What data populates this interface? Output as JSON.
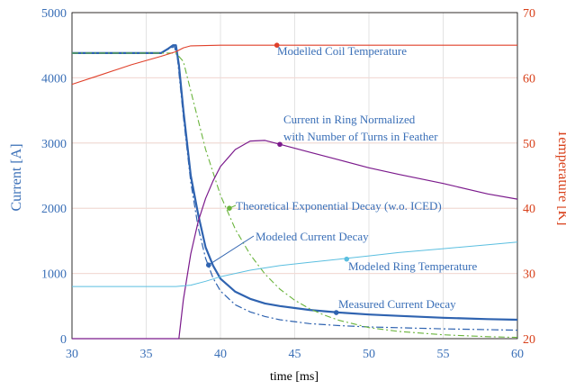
{
  "chart_data": {
    "type": "line",
    "title": "",
    "xlabel": "time [ms]",
    "ylabel_left": "Current [A]",
    "ylabel_right": "Temperature [K]",
    "xlim": [
      30,
      60
    ],
    "ylim_left": [
      0,
      5000
    ],
    "ylim_right": [
      20,
      70
    ],
    "x_ticks": [
      "30",
      "35",
      "40",
      "45",
      "50",
      "55",
      "60"
    ],
    "y_ticks_left": [
      "0",
      "1000",
      "2000",
      "3000",
      "4000",
      "5000"
    ],
    "y_ticks_right": [
      "20",
      "30",
      "40",
      "50",
      "60",
      "70"
    ],
    "grid": true,
    "colors": {
      "left_axis": "#3a6fb7",
      "right_axis": "#d8401a",
      "measured": "#2f63b0",
      "modeled_current": "#2f63b0",
      "exponential": "#6ab43c",
      "ring_current": "#7b1a8c",
      "coil_temp": "#e0402a",
      "ring_temp": "#5bbfe0"
    },
    "annotations": {
      "coil_temp": "Modelled Coil Temperature",
      "ring_current_1": "Current in Ring Normalized",
      "ring_current_2": "with Number of Turns in Feather",
      "exponential": "Theoretical Exponential Decay (w.o. ICED)",
      "modeled_current": "Modeled Current Decay",
      "ring_temp": "Modeled Ring Temperature",
      "measured": "Measured Current Decay"
    },
    "series": [
      {
        "key": "measured",
        "axis": "left",
        "values": [
          [
            30,
            4380
          ],
          [
            36,
            4380
          ],
          [
            36.5,
            4450
          ],
          [
            36.8,
            4500
          ],
          [
            37.0,
            4500
          ],
          [
            37.2,
            4200
          ],
          [
            37.5,
            3500
          ],
          [
            38,
            2500
          ],
          [
            38.5,
            1900
          ],
          [
            39,
            1400
          ],
          [
            39.5,
            1120
          ],
          [
            40,
            920
          ],
          [
            41,
            720
          ],
          [
            42,
            610
          ],
          [
            43,
            540
          ],
          [
            44,
            500
          ],
          [
            46,
            440
          ],
          [
            48,
            400
          ],
          [
            50,
            370
          ],
          [
            52,
            350
          ],
          [
            55,
            320
          ],
          [
            58,
            300
          ],
          [
            60,
            290
          ]
        ]
      },
      {
        "key": "modeled_current",
        "axis": "left",
        "values": [
          [
            30,
            4380
          ],
          [
            36,
            4380
          ],
          [
            36.5,
            4440
          ],
          [
            36.9,
            4480
          ],
          [
            37.1,
            4300
          ],
          [
            37.5,
            3400
          ],
          [
            38,
            2400
          ],
          [
            38.5,
            1700
          ],
          [
            39,
            1230
          ],
          [
            39.5,
            930
          ],
          [
            40,
            730
          ],
          [
            41,
            520
          ],
          [
            42,
            410
          ],
          [
            43,
            340
          ],
          [
            44,
            290
          ],
          [
            46,
            230
          ],
          [
            48,
            200
          ],
          [
            50,
            180
          ],
          [
            55,
            150
          ],
          [
            60,
            130
          ]
        ]
      },
      {
        "key": "exponential",
        "axis": "left",
        "values": [
          [
            30,
            4380
          ],
          [
            37,
            4380
          ],
          [
            37.5,
            4250
          ],
          [
            38,
            3800
          ],
          [
            39,
            2900
          ],
          [
            40,
            2200
          ],
          [
            41,
            1680
          ],
          [
            42,
            1290
          ],
          [
            43,
            990
          ],
          [
            44,
            760
          ],
          [
            45,
            590
          ],
          [
            46,
            460
          ],
          [
            47,
            360
          ],
          [
            48,
            280
          ],
          [
            50,
            170
          ],
          [
            52,
            110
          ],
          [
            55,
            60
          ],
          [
            58,
            30
          ],
          [
            60,
            20
          ]
        ]
      },
      {
        "key": "ring_current",
        "axis": "left",
        "values": [
          [
            30,
            0
          ],
          [
            37.2,
            0
          ],
          [
            37.5,
            600
          ],
          [
            38,
            1300
          ],
          [
            38.5,
            1800
          ],
          [
            39,
            2150
          ],
          [
            39.5,
            2420
          ],
          [
            40,
            2640
          ],
          [
            41,
            2900
          ],
          [
            42,
            3030
          ],
          [
            43,
            3040
          ],
          [
            44,
            2980
          ],
          [
            46,
            2860
          ],
          [
            48,
            2740
          ],
          [
            50,
            2620
          ],
          [
            52,
            2520
          ],
          [
            55,
            2380
          ],
          [
            58,
            2220
          ],
          [
            60,
            2140
          ]
        ]
      },
      {
        "key": "coil_temp",
        "axis": "right",
        "values": [
          [
            30,
            59
          ],
          [
            32,
            60.5
          ],
          [
            34,
            62
          ],
          [
            36,
            63.3
          ],
          [
            37,
            64
          ],
          [
            37.5,
            64.6
          ],
          [
            38,
            64.9
          ],
          [
            40,
            65
          ],
          [
            45,
            65
          ],
          [
            50,
            65
          ],
          [
            55,
            65
          ],
          [
            60,
            65
          ]
        ]
      },
      {
        "key": "ring_temp",
        "axis": "right",
        "values": [
          [
            30,
            28
          ],
          [
            37,
            28
          ],
          [
            38,
            28.2
          ],
          [
            39,
            28.8
          ],
          [
            40,
            29.5
          ],
          [
            42,
            30.5
          ],
          [
            44,
            31.2
          ],
          [
            46,
            31.7
          ],
          [
            48,
            32.2
          ],
          [
            50,
            32.7
          ],
          [
            52,
            33.2
          ],
          [
            55,
            33.8
          ],
          [
            58,
            34.4
          ],
          [
            60,
            34.8
          ]
        ]
      }
    ],
    "markers": [
      {
        "key": "coil_temp",
        "axis": "right",
        "x": 43.8,
        "y": 65
      },
      {
        "key": "ring_current",
        "axis": "left",
        "x": 44,
        "y": 2980
      },
      {
        "key": "exponential",
        "axis": "left",
        "x": 40.6,
        "y": 2000
      },
      {
        "key": "modeled_current",
        "axis": "left",
        "x": 39.2,
        "y": 1130
      },
      {
        "key": "ring_temp",
        "axis": "right",
        "x": 48.5,
        "y": 32.2
      },
      {
        "key": "measured",
        "axis": "left",
        "x": 47.8,
        "y": 400
      }
    ]
  }
}
